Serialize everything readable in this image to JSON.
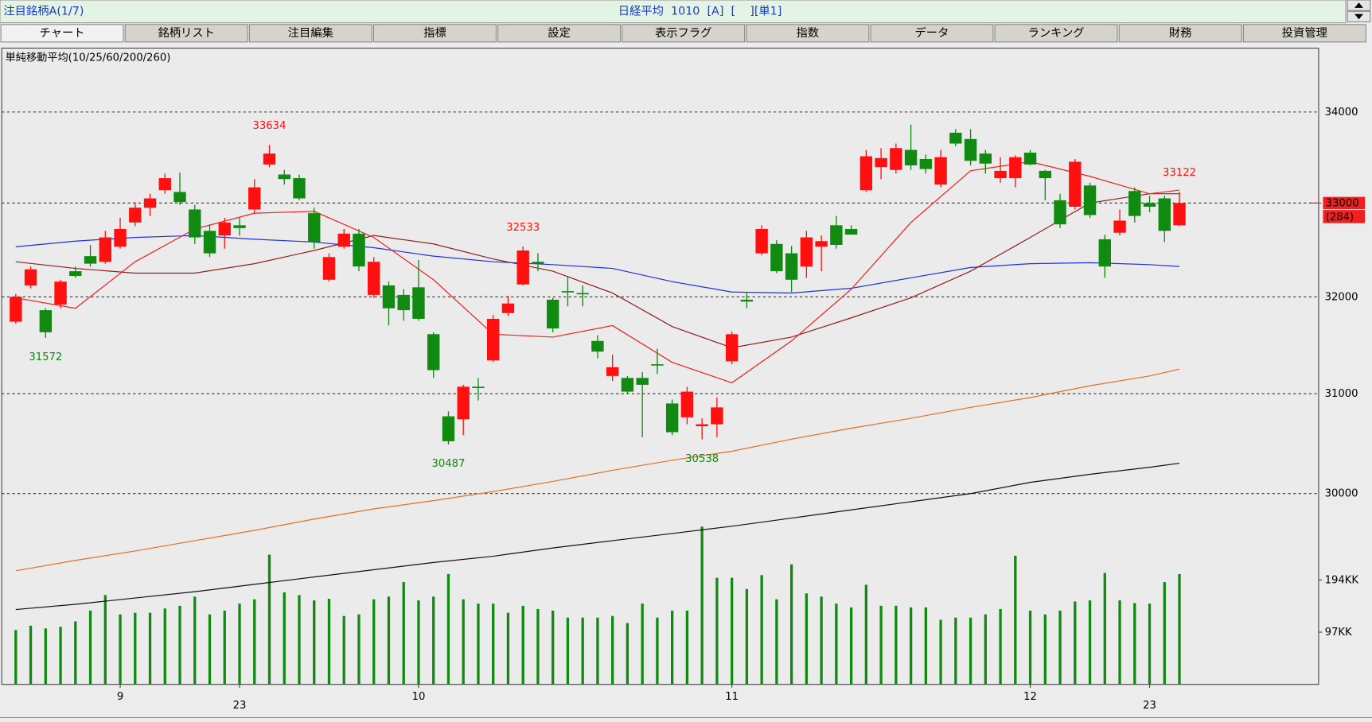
{
  "header": {
    "left": "注目銘柄A(1/7)",
    "center": "日経平均  1010  [A]  [    ][単1]"
  },
  "tabs": [
    "チャート",
    "銘柄リスト",
    "注目編集",
    "指標",
    "設定",
    "表示フラグ",
    "指数",
    "データ",
    "ランキング",
    "財務",
    "投資管理"
  ],
  "chart_data": {
    "type": "candlestick",
    "title": "単純移動平均(10/25/60/200/260)",
    "log_scale": true,
    "grid": true,
    "up_color": "#ff1010",
    "down_color": "#108a10",
    "xlim": [
      -0.94,
      87.33
    ],
    "ylim": [
      28180,
      34720
    ],
    "yticks": [
      30000,
      31000,
      32000,
      33000,
      34000
    ],
    "y2lim": [
      0,
      1182
    ],
    "y2ticks": [
      {
        "value": 97,
        "label": "97KK"
      },
      {
        "value": 194,
        "label": "194KK"
      }
    ],
    "xticks": [
      {
        "value": 7,
        "label": "9"
      },
      {
        "value": 27,
        "label": "10"
      },
      {
        "value": 48,
        "label": "11"
      },
      {
        "value": 68,
        "label": "12"
      }
    ],
    "xticks2": [
      {
        "value": 15,
        "label": "23"
      },
      {
        "value": 76,
        "label": "23"
      }
    ],
    "open": [
      31740,
      32120,
      31860,
      31920,
      32270,
      32430,
      32370,
      32530,
      32790,
      32950,
      33140,
      33120,
      32930,
      32700,
      32650,
      32760,
      32930,
      33420,
      33310,
      33270,
      32890,
      32180,
      32530,
      32670,
      32020,
      32120,
      32020,
      32100,
      31610,
      30770,
      30740,
      31070,
      31340,
      31830,
      32130,
      32370,
      31970,
      32060,
      32040,
      31540,
      31180,
      31160,
      31160,
      31300,
      30900,
      30760,
      30670,
      30690,
      31330,
      31970,
      32460,
      32560,
      32460,
      32320,
      32530,
      32760,
      32720,
      33140,
      33390,
      33360,
      33580,
      33480,
      33200,
      33770,
      33700,
      33540,
      33270,
      33270,
      33550,
      33350,
      33030,
      32960,
      33190,
      32610,
      32680,
      33130,
      33000,
      33050,
      32760
    ],
    "high": [
      32030,
      32320,
      31880,
      32180,
      32320,
      32550,
      32700,
      32840,
      33010,
      33100,
      33320,
      33330,
      32980,
      32770,
      32840,
      32840,
      33260,
      33634,
      33360,
      33310,
      32950,
      32460,
      32720,
      32720,
      32420,
      32160,
      32080,
      32390,
      31630,
      30820,
      31090,
      31160,
      31810,
      32010,
      32533,
      32460,
      31990,
      32220,
      32120,
      31600,
      31400,
      31180,
      31220,
      31460,
      30940,
      31070,
      30750,
      30960,
      31640,
      32040,
      32760,
      32600,
      32540,
      32700,
      32650,
      32860,
      32760,
      33580,
      33600,
      33650,
      33860,
      33530,
      33580,
      33810,
      33810,
      33580,
      33500,
      33520,
      33580,
      33360,
      33100,
      33480,
      33220,
      32660,
      32930,
      33170,
      33080,
      33080,
      33122
    ],
    "low": [
      31720,
      32090,
      31572,
      31880,
      32200,
      32320,
      32350,
      32510,
      32750,
      32860,
      33100,
      32980,
      32560,
      32420,
      32510,
      32650,
      32890,
      33390,
      33200,
      33030,
      32510,
      32160,
      32510,
      32270,
      31990,
      31700,
      31750,
      31750,
      31160,
      30487,
      30580,
      30930,
      31320,
      31800,
      32120,
      32270,
      31630,
      31900,
      31900,
      31360,
      31130,
      31000,
      30560,
      31200,
      30580,
      30690,
      30538,
      30560,
      31300,
      31880,
      32440,
      32250,
      32050,
      32200,
      32270,
      32510,
      32680,
      33120,
      33260,
      33320,
      33360,
      33320,
      33170,
      33620,
      33410,
      33320,
      33220,
      33170,
      33410,
      33030,
      32730,
      32930,
      32840,
      32200,
      32650,
      32790,
      32900,
      32580,
      32750
    ],
    "close": [
      32000,
      32290,
      31630,
      32160,
      32220,
      32350,
      32630,
      32720,
      32950,
      33050,
      33270,
      33010,
      32630,
      32460,
      32790,
      32730,
      33170,
      33540,
      33260,
      33050,
      32580,
      32420,
      32670,
      32320,
      32370,
      31880,
      31860,
      31770,
      31240,
      30520,
      31070,
      31060,
      31770,
      31930,
      32490,
      32350,
      31670,
      32050,
      32030,
      31430,
      31270,
      31020,
      31090,
      31290,
      30610,
      31020,
      30690,
      30860,
      31610,
      31950,
      32720,
      32270,
      32180,
      32630,
      32590,
      32550,
      32660,
      33510,
      33490,
      33600,
      33410,
      33370,
      33500,
      33650,
      33460,
      33430,
      33350,
      33500,
      33420,
      33270,
      32770,
      33450,
      32870,
      32320,
      32810,
      32860,
      32960,
      32700,
      33000
    ],
    "volume": {
      "color": "#108a10",
      "axis": "y2",
      "values": [
        101,
        109,
        104,
        107,
        117,
        137,
        166,
        130,
        133,
        133,
        141,
        146,
        163,
        130,
        137,
        150,
        158,
        241,
        171,
        166,
        156,
        159,
        127,
        130,
        158,
        163,
        190,
        156,
        163,
        205,
        158,
        150,
        150,
        133,
        146,
        140,
        137,
        124,
        124,
        124,
        127,
        114,
        150,
        124,
        137,
        137,
        293,
        198,
        198,
        177,
        203,
        158,
        223,
        169,
        163,
        150,
        143,
        185,
        146,
        146,
        143,
        143,
        120,
        124,
        124,
        130,
        140,
        239,
        137,
        130,
        137,
        154,
        156,
        207,
        156,
        151,
        150,
        190,
        205
      ]
    },
    "moving_averages": [
      {
        "color": "#e87020",
        "x": [
          0,
          4,
          8,
          12,
          16,
          20,
          24,
          28,
          32,
          36,
          40,
          44,
          48,
          52,
          56,
          60,
          64,
          68,
          72,
          76,
          78
        ],
        "values": [
          29250,
          29350,
          29440,
          29540,
          29640,
          29750,
          29850,
          29930,
          30020,
          30120,
          30230,
          30330,
          30420,
          30540,
          30650,
          30750,
          30860,
          30960,
          31080,
          31180,
          31250
        ]
      },
      {
        "color": "#101010",
        "x": [
          0,
          4,
          8,
          12,
          16,
          20,
          24,
          28,
          32,
          36,
          40,
          44,
          48,
          52,
          56,
          60,
          64,
          68,
          72,
          76,
          78
        ],
        "values": [
          28880,
          28930,
          28990,
          29050,
          29120,
          29190,
          29260,
          29330,
          29390,
          29470,
          29540,
          29610,
          29680,
          29760,
          29840,
          29920,
          30000,
          30110,
          30190,
          30260,
          30300
        ]
      },
      {
        "color": "#2030e0",
        "x": [
          0,
          4,
          8,
          12,
          16,
          20,
          24,
          28,
          32,
          36,
          40,
          44,
          48,
          52,
          56,
          60,
          64,
          68,
          72,
          76,
          78
        ],
        "values": [
          32530,
          32590,
          32630,
          32650,
          32610,
          32580,
          32520,
          32430,
          32370,
          32340,
          32300,
          32160,
          32050,
          32040,
          32090,
          32200,
          32310,
          32350,
          32360,
          32340,
          32320
        ]
      },
      {
        "color": "#902020",
        "x": [
          0,
          4,
          8,
          12,
          16,
          20,
          24,
          28,
          32,
          36,
          40,
          44,
          48,
          52,
          56,
          60,
          64,
          68,
          72,
          76,
          78
        ],
        "values": [
          32370,
          32300,
          32250,
          32250,
          32350,
          32490,
          32650,
          32560,
          32400,
          32270,
          32040,
          31690,
          31470,
          31580,
          31780,
          31990,
          32270,
          32630,
          33000,
          33100,
          33100
        ]
      },
      {
        "color": "#f02020",
        "x": [
          0,
          4,
          8,
          12,
          16,
          20,
          24,
          28,
          32,
          36,
          40,
          44,
          48,
          52,
          56,
          60,
          64,
          68,
          72,
          76,
          78
        ],
        "values": [
          31990,
          31880,
          32370,
          32720,
          32890,
          32910,
          32630,
          32180,
          31610,
          31580,
          31700,
          31320,
          31110,
          31540,
          32080,
          32790,
          33350,
          33450,
          33290,
          33100,
          33140
        ]
      }
    ],
    "annotations": [
      {
        "index": 17,
        "value": 33634,
        "color": "#ff1010"
      },
      {
        "index": 2,
        "value": 31572,
        "color": "#108a10"
      },
      {
        "index": 34,
        "value": 32533,
        "color": "#ff1010"
      },
      {
        "index": 29,
        "value": 30487,
        "color": "#108a10"
      },
      {
        "index": 46,
        "value": 30538,
        "color": "#108a10"
      },
      {
        "index": 78,
        "value": 33122,
        "color": "#ff1010"
      }
    ],
    "change_label": "(284)"
  }
}
